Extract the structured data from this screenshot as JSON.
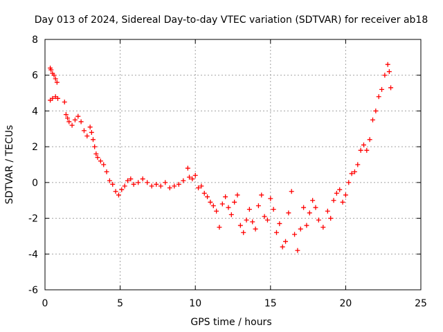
{
  "chart_data": {
    "type": "scatter",
    "title": "Day 013 of 2024, Sidereal Day-to-day VTEC variation (SDTVAR) for receiver ab18",
    "xlabel": "GPS time / hours",
    "ylabel": "SDTVAR / TECUs",
    "xlim": [
      0,
      25
    ],
    "ylim": [
      -6,
      8
    ],
    "xticks": [
      "0",
      "5",
      "10",
      "15",
      "20",
      "25"
    ],
    "yticks": [
      "-6",
      "-4",
      "-2",
      "0",
      "2",
      "4",
      "6",
      "8"
    ],
    "grid": true,
    "marker": "+",
    "series": [
      {
        "name": "SDTVAR ab18",
        "color": "#ff0000",
        "x": [
          0.35,
          0.4,
          0.5,
          0.6,
          0.7,
          0.8,
          0.35,
          0.5,
          0.7,
          0.85,
          1.3,
          1.4,
          1.5,
          1.6,
          1.8,
          2.0,
          2.2,
          2.4,
          2.6,
          2.8,
          3.0,
          3.1,
          3.2,
          3.3,
          3.4,
          3.5,
          3.7,
          3.9,
          4.1,
          4.3,
          4.5,
          4.7,
          4.9,
          5.1,
          5.3,
          5.5,
          5.7,
          5.9,
          6.2,
          6.5,
          6.8,
          7.1,
          7.4,
          7.7,
          8.0,
          8.3,
          8.6,
          8.9,
          9.2,
          9.5,
          9.6,
          9.8,
          10.0,
          10.2,
          10.4,
          10.6,
          10.8,
          11.0,
          11.2,
          11.4,
          11.6,
          11.8,
          12.0,
          12.2,
          12.4,
          12.6,
          12.8,
          13.0,
          13.2,
          13.4,
          13.6,
          13.8,
          14.0,
          14.2,
          14.4,
          14.6,
          14.8,
          15.0,
          15.2,
          15.4,
          15.6,
          15.8,
          16.0,
          16.2,
          16.4,
          16.6,
          16.8,
          17.0,
          17.2,
          17.4,
          17.6,
          17.8,
          18.0,
          18.2,
          18.5,
          18.8,
          19.0,
          19.2,
          19.4,
          19.6,
          19.8,
          20.0,
          20.2,
          20.4,
          20.6,
          20.8,
          21.0,
          21.2,
          21.4,
          21.6,
          21.8,
          22.0,
          22.2,
          22.4,
          22.6,
          22.8,
          22.9,
          23.0
        ],
        "y": [
          6.4,
          6.3,
          6.1,
          6.0,
          5.8,
          5.6,
          4.6,
          4.7,
          4.8,
          4.7,
          4.5,
          3.8,
          3.6,
          3.4,
          3.2,
          3.5,
          3.7,
          3.4,
          2.9,
          2.6,
          3.1,
          2.8,
          2.4,
          2.0,
          1.6,
          1.4,
          1.2,
          1.0,
          0.6,
          0.1,
          -0.1,
          -0.5,
          -0.7,
          -0.4,
          -0.2,
          0.1,
          0.2,
          -0.1,
          0.0,
          0.2,
          0.0,
          -0.2,
          -0.1,
          -0.2,
          0.0,
          -0.3,
          -0.2,
          -0.1,
          0.1,
          0.8,
          0.3,
          0.2,
          0.4,
          -0.3,
          -0.2,
          -0.6,
          -0.8,
          -1.1,
          -1.3,
          -1.6,
          -2.5,
          -1.2,
          -0.8,
          -1.4,
          -1.8,
          -1.1,
          -0.7,
          -2.4,
          -2.8,
          -2.1,
          -1.5,
          -2.2,
          -2.6,
          -1.3,
          -0.7,
          -1.9,
          -2.1,
          -0.9,
          -1.5,
          -2.8,
          -2.3,
          -3.6,
          -3.3,
          -1.7,
          -0.5,
          -2.9,
          -3.8,
          -2.6,
          -1.4,
          -2.4,
          -1.7,
          -1.0,
          -1.4,
          -2.1,
          -2.5,
          -1.6,
          -2.0,
          -1.0,
          -0.6,
          -0.4,
          -1.1,
          -0.7,
          0.0,
          0.5,
          0.6,
          1.0,
          1.8,
          2.1,
          1.8,
          2.4,
          3.5,
          4.0,
          4.8,
          5.2,
          6.0,
          6.6,
          6.2,
          5.3
        ]
      }
    ]
  }
}
